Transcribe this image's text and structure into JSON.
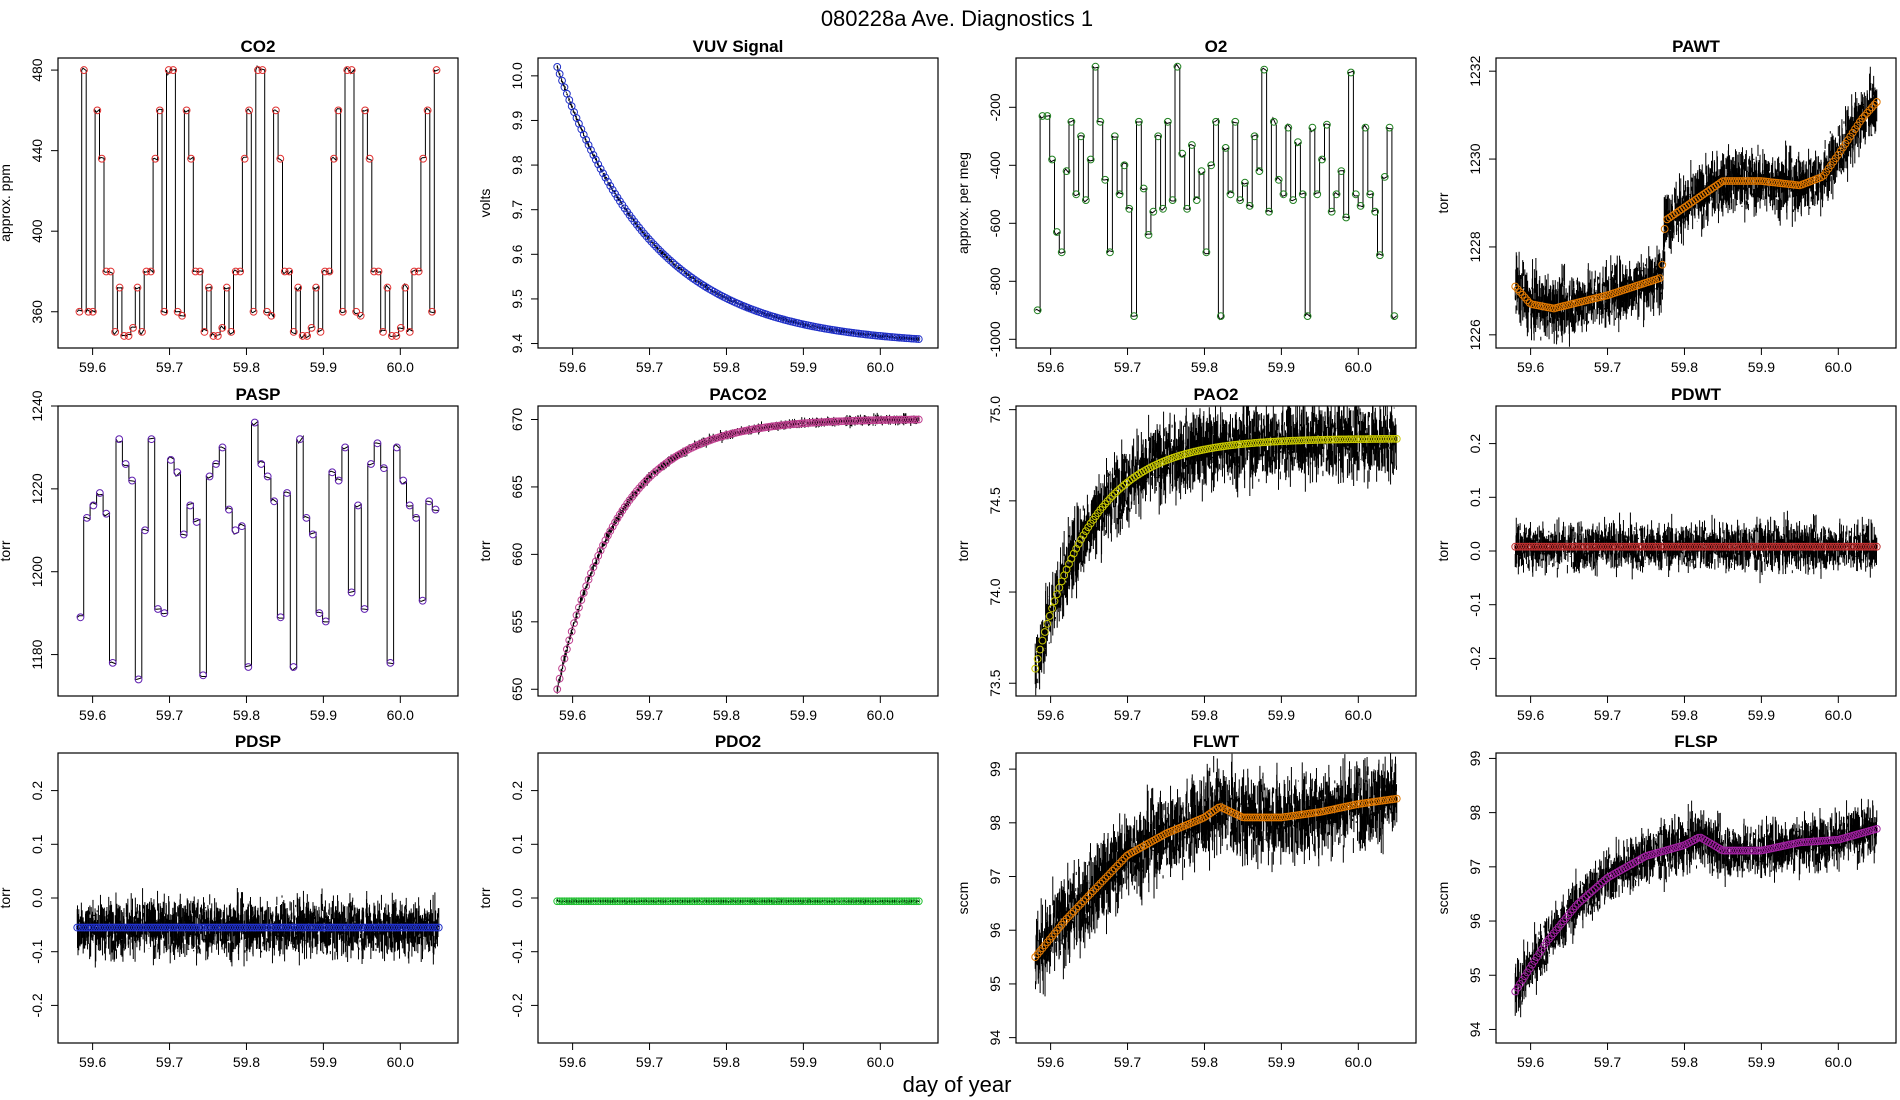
{
  "figure": {
    "title": "080228a   Ave. Diagnostics 1",
    "xlabel": "day of year"
  },
  "chart_data": [
    {
      "type": "line",
      "title": "CO2",
      "ylabel": "approx. ppm",
      "xlim": [
        59.555,
        60.075
      ],
      "ylim": [
        342,
        486
      ],
      "xticks": [
        59.6,
        59.7,
        59.8,
        59.9,
        60.0
      ],
      "xtick_labels": [
        "59.6",
        "59.7",
        "59.8",
        "59.9",
        "60.0"
      ],
      "yticks": [
        360,
        400,
        440,
        480
      ],
      "ytick_labels": [
        "360",
        "400",
        "440",
        "480"
      ],
      "marker_color": "#e03030",
      "pattern": "switch",
      "levels": [
        360,
        480,
        360,
        360,
        460,
        436,
        380,
        380,
        350,
        372,
        348,
        348,
        352,
        372,
        350,
        380,
        380,
        436,
        460,
        360,
        480,
        480,
        360,
        358,
        460,
        436,
        380,
        380,
        350,
        372,
        348,
        348,
        352,
        372,
        350,
        380,
        380,
        436,
        460,
        360,
        480,
        480,
        360,
        358,
        460,
        436,
        380,
        380,
        350,
        372,
        348,
        348,
        352,
        372,
        350,
        380,
        380,
        436,
        460,
        360,
        480,
        480,
        360,
        358,
        460,
        436,
        380,
        380,
        350,
        372,
        348,
        348,
        352,
        372,
        350,
        380,
        380,
        436,
        460,
        360,
        480
      ]
    },
    {
      "type": "line",
      "title": "VUV Signal",
      "ylabel": "volts",
      "xlim": [
        59.555,
        60.075
      ],
      "ylim": [
        9.39,
        10.04
      ],
      "xticks": [
        59.6,
        59.7,
        59.8,
        59.9,
        60.0
      ],
      "xtick_labels": [
        "59.6",
        "59.7",
        "59.8",
        "59.9",
        "60.0"
      ],
      "yticks": [
        9.4,
        9.5,
        9.6,
        9.7,
        9.8,
        9.9,
        10.0
      ],
      "ytick_labels": [
        "9.4",
        "9.5",
        "9.6",
        "9.7",
        "9.8",
        "9.9",
        "10.0"
      ],
      "marker_color": "#2030c8",
      "pattern": "decay",
      "x_start": 59.58,
      "x_end": 60.05,
      "start": 10.02,
      "end": 9.41,
      "rate": 3.8,
      "noise": 0.003
    },
    {
      "type": "line",
      "title": "O2",
      "ylabel": "approx. per meg",
      "xlim": [
        59.555,
        60.075
      ],
      "ylim": [
        -1030,
        -30
      ],
      "xticks": [
        59.6,
        59.7,
        59.8,
        59.9,
        60.0
      ],
      "xtick_labels": [
        "59.6",
        "59.7",
        "59.8",
        "59.9",
        "60.0"
      ],
      "yticks": [
        -1000,
        -800,
        -600,
        -400,
        -200
      ],
      "ytick_labels": [
        "-1000",
        "-800",
        "-600",
        "-400",
        "-200"
      ],
      "marker_color": "#208020",
      "pattern": "switch",
      "levels": [
        -900,
        -230,
        -230,
        -380,
        -630,
        -700,
        -420,
        -250,
        -500,
        -300,
        -520,
        -380,
        -60,
        -250,
        -450,
        -700,
        -300,
        -500,
        -400,
        -550,
        -920,
        -250,
        -480,
        -640,
        -560,
        -300,
        -550,
        -250,
        -520,
        -60,
        -360,
        -550,
        -330,
        -520,
        -420,
        -700,
        -400,
        -250,
        -920,
        -340,
        -500,
        -250,
        -520,
        -460,
        -540,
        -300,
        -420,
        -70,
        -560,
        -250,
        -450,
        -500,
        -270,
        -520,
        -320,
        -500,
        -920,
        -270,
        -500,
        -380,
        -260,
        -560,
        -500,
        -420,
        -580,
        -80,
        -500,
        -540,
        -270,
        -500,
        -560,
        -710,
        -440,
        -270,
        -920
      ]
    },
    {
      "type": "line",
      "title": "PAWT",
      "ylabel": "torr",
      "xlim": [
        59.555,
        60.075
      ],
      "ylim": [
        1225.7,
        1232.3
      ],
      "xticks": [
        59.6,
        59.7,
        59.8,
        59.9,
        60.0
      ],
      "xtick_labels": [
        "59.6",
        "59.7",
        "59.8",
        "59.9",
        "60.0"
      ],
      "yticks": [
        1226,
        1228,
        1230,
        1232
      ],
      "ytick_labels": [
        "1226",
        "1228",
        "1230",
        "1232"
      ],
      "marker_color": "#e07800",
      "pattern": "piecewise",
      "knots": [
        [
          59.58,
          1227.1
        ],
        [
          59.6,
          1226.7
        ],
        [
          59.63,
          1226.6
        ],
        [
          59.7,
          1226.9
        ],
        [
          59.77,
          1227.3
        ],
        [
          59.775,
          1228.6
        ],
        [
          59.8,
          1228.9
        ],
        [
          59.85,
          1229.5
        ],
        [
          59.9,
          1229.5
        ],
        [
          59.95,
          1229.4
        ],
        [
          59.98,
          1229.6
        ],
        [
          60.0,
          1230.1
        ],
        [
          60.03,
          1230.9
        ],
        [
          60.05,
          1231.3
        ]
      ],
      "noise": 0.4
    },
    {
      "type": "line",
      "title": "PASP",
      "ylabel": "torr",
      "xlim": [
        59.555,
        60.075
      ],
      "ylim": [
        1170,
        1240
      ],
      "xticks": [
        59.6,
        59.7,
        59.8,
        59.9,
        60.0
      ],
      "xtick_labels": [
        "59.6",
        "59.7",
        "59.8",
        "59.9",
        "60.0"
      ],
      "yticks": [
        1180,
        1200,
        1220,
        1240
      ],
      "ytick_labels": [
        "1180",
        "1200",
        "1220",
        "1240"
      ],
      "marker_color": "#6020b0",
      "pattern": "switch",
      "levels": [
        1189,
        1213,
        1216,
        1219,
        1214,
        1178,
        1232,
        1226,
        1222,
        1174,
        1210,
        1232,
        1191,
        1190,
        1227,
        1224,
        1209,
        1216,
        1212,
        1175,
        1223,
        1226,
        1230,
        1215,
        1210,
        1211,
        1177,
        1236,
        1226,
        1223,
        1217,
        1189,
        1219,
        1177,
        1232,
        1213,
        1209,
        1190,
        1188,
        1224,
        1222,
        1230,
        1195,
        1216,
        1191,
        1226,
        1231,
        1225,
        1178,
        1230,
        1222,
        1216,
        1213,
        1193,
        1217,
        1215
      ]
    },
    {
      "type": "line",
      "title": "PACO2",
      "ylabel": "torr",
      "xlim": [
        59.555,
        60.075
      ],
      "ylim": [
        649.5,
        671
      ],
      "xticks": [
        59.6,
        59.7,
        59.8,
        59.9,
        60.0
      ],
      "xtick_labels": [
        "59.6",
        "59.7",
        "59.8",
        "59.9",
        "60.0"
      ],
      "yticks": [
        650,
        655,
        660,
        665,
        670
      ],
      "ytick_labels": [
        "650",
        "655",
        "660",
        "665",
        "670"
      ],
      "marker_color": "#c04090",
      "pattern": "decay",
      "x_start": 59.58,
      "x_end": 60.05,
      "start": 650,
      "end": 670,
      "rate": 6.0,
      "noise": 0.2
    },
    {
      "type": "line",
      "title": "PAO2",
      "ylabel": "torr",
      "xlim": [
        59.555,
        60.075
      ],
      "ylim": [
        73.43,
        75.02
      ],
      "xticks": [
        59.6,
        59.7,
        59.8,
        59.9,
        60.0
      ],
      "xtick_labels": [
        "59.6",
        "59.7",
        "59.8",
        "59.9",
        "60.0"
      ],
      "yticks": [
        73.5,
        74.0,
        74.5,
        75.0
      ],
      "ytick_labels": [
        "73.5",
        "74.0",
        "74.5",
        "75.0"
      ],
      "marker_color": "#c8c800",
      "pattern": "decay",
      "x_start": 59.58,
      "x_end": 60.05,
      "start": 73.58,
      "end": 74.84,
      "rate": 6.5,
      "noise": 0.12
    },
    {
      "type": "line",
      "title": "PDWT",
      "ylabel": "torr",
      "xlim": [
        59.555,
        60.075
      ],
      "ylim": [
        -0.27,
        0.27
      ],
      "xticks": [
        59.6,
        59.7,
        59.8,
        59.9,
        60.0
      ],
      "xtick_labels": [
        "59.6",
        "59.7",
        "59.8",
        "59.9",
        "60.0"
      ],
      "yticks": [
        -0.2,
        -0.1,
        0.0,
        0.1,
        0.2
      ],
      "ytick_labels": [
        "-0.2",
        "-0.1",
        "0.0",
        "0.1",
        "0.2"
      ],
      "marker_color": "#c03030",
      "pattern": "flat",
      "x_start": 59.58,
      "x_end": 60.05,
      "value": 0.008,
      "noise": 0.025
    },
    {
      "type": "line",
      "title": "PDSP",
      "ylabel": "torr",
      "xlim": [
        59.555,
        60.075
      ],
      "ylim": [
        -0.27,
        0.27
      ],
      "xticks": [
        59.6,
        59.7,
        59.8,
        59.9,
        60.0
      ],
      "xtick_labels": [
        "59.6",
        "59.7",
        "59.8",
        "59.9",
        "60.0"
      ],
      "yticks": [
        -0.2,
        -0.1,
        0.0,
        0.1,
        0.2
      ],
      "ytick_labels": [
        "-0.2",
        "-0.1",
        "0.0",
        "0.1",
        "0.2"
      ],
      "marker_color": "#2030c8",
      "pattern": "flat",
      "x_start": 59.58,
      "x_end": 60.05,
      "value": -0.055,
      "noise": 0.03
    },
    {
      "type": "line",
      "title": "PDO2",
      "ylabel": "torr",
      "xlim": [
        59.555,
        60.075
      ],
      "ylim": [
        -0.27,
        0.27
      ],
      "xticks": [
        59.6,
        59.7,
        59.8,
        59.9,
        60.0
      ],
      "xtick_labels": [
        "59.6",
        "59.7",
        "59.8",
        "59.9",
        "60.0"
      ],
      "yticks": [
        -0.2,
        -0.1,
        0.0,
        0.1,
        0.2
      ],
      "ytick_labels": [
        "-0.2",
        "-0.1",
        "0.0",
        "0.1",
        "0.2"
      ],
      "marker_color": "#20c030",
      "pattern": "flat",
      "x_start": 59.58,
      "x_end": 60.05,
      "value": -0.006,
      "noise": 0.002
    },
    {
      "type": "line",
      "title": "FLWT",
      "ylabel": "sccm",
      "xlim": [
        59.555,
        60.075
      ],
      "ylim": [
        93.9,
        99.3
      ],
      "xticks": [
        59.6,
        59.7,
        59.8,
        59.9,
        60.0
      ],
      "xtick_labels": [
        "59.6",
        "59.7",
        "59.8",
        "59.9",
        "60.0"
      ],
      "yticks": [
        94,
        95,
        96,
        97,
        98,
        99
      ],
      "ytick_labels": [
        "94",
        "95",
        "96",
        "97",
        "98",
        "99"
      ],
      "marker_color": "#e07800",
      "pattern": "piecewise",
      "knots": [
        [
          59.58,
          95.5
        ],
        [
          59.62,
          96.2
        ],
        [
          59.66,
          96.8
        ],
        [
          59.7,
          97.4
        ],
        [
          59.75,
          97.8
        ],
        [
          59.8,
          98.1
        ],
        [
          59.82,
          98.3
        ],
        [
          59.85,
          98.1
        ],
        [
          59.9,
          98.1
        ],
        [
          59.95,
          98.2
        ],
        [
          60.0,
          98.35
        ],
        [
          60.05,
          98.45
        ]
      ],
      "noise": 0.45
    },
    {
      "type": "line",
      "title": "FLSP",
      "ylabel": "sccm",
      "xlim": [
        59.555,
        60.075
      ],
      "ylim": [
        93.75,
        99.1
      ],
      "xticks": [
        59.6,
        59.7,
        59.8,
        59.9,
        60.0
      ],
      "xtick_labels": [
        "59.6",
        "59.7",
        "59.8",
        "59.9",
        "60.0"
      ],
      "yticks": [
        94,
        95,
        96,
        97,
        98,
        99
      ],
      "ytick_labels": [
        "94",
        "95",
        "96",
        "97",
        "98",
        "99"
      ],
      "marker_color": "#a020a0",
      "pattern": "piecewise",
      "knots": [
        [
          59.58,
          94.7
        ],
        [
          59.62,
          95.6
        ],
        [
          59.66,
          96.3
        ],
        [
          59.7,
          96.8
        ],
        [
          59.75,
          97.2
        ],
        [
          59.8,
          97.4
        ],
        [
          59.82,
          97.55
        ],
        [
          59.85,
          97.3
        ],
        [
          59.9,
          97.3
        ],
        [
          59.95,
          97.45
        ],
        [
          60.0,
          97.5
        ],
        [
          60.05,
          97.7
        ]
      ],
      "noise": 0.28
    }
  ]
}
